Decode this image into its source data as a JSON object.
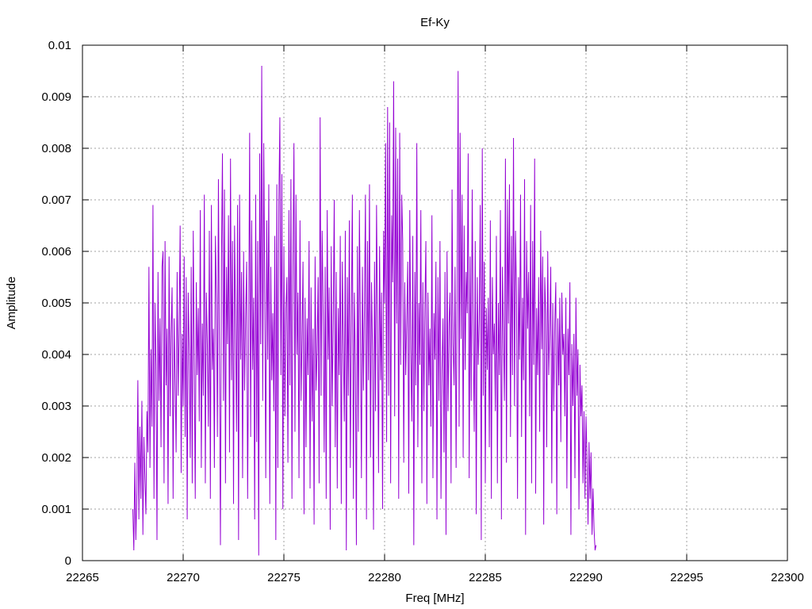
{
  "chart_data": {
    "type": "line",
    "title": "Ef-Ky",
    "xlabel": "Freq [MHz]",
    "ylabel": "Amplitude",
    "xlim": [
      22265,
      22300
    ],
    "ylim": [
      0,
      0.01
    ],
    "x_ticks": [
      22265,
      22270,
      22275,
      22280,
      22285,
      22290,
      22295,
      22300
    ],
    "x_tick_labels": [
      "22265",
      "22270",
      "22275",
      "22280",
      "22285",
      "22290",
      "22295",
      "22300"
    ],
    "y_ticks": [
      0,
      0.001,
      0.002,
      0.003,
      0.004,
      0.005,
      0.006,
      0.007,
      0.008,
      0.009,
      0.01
    ],
    "y_tick_labels": [
      "0",
      "0.001",
      "0.002",
      "0.003",
      "0.004",
      "0.005",
      "0.006",
      "0.007",
      "0.008",
      "0.009",
      "0.01"
    ],
    "grid": true,
    "legend": "none",
    "series": [
      {
        "color": "#9400d3",
        "x_start": 22267.5,
        "x_step": 0.05,
        "y": [
          0.001,
          0.0002,
          0.0019,
          0.0004,
          0.0013,
          0.0035,
          0.0008,
          0.0026,
          0.0012,
          0.0031,
          0.0005,
          0.0024,
          0.0016,
          0.0009,
          0.0029,
          0.0021,
          0.0057,
          0.0018,
          0.0041,
          0.0026,
          0.0069,
          0.0012,
          0.005,
          0.0038,
          0.0004,
          0.0056,
          0.0031,
          0.0047,
          0.0022,
          0.0057,
          0.006,
          0.0015,
          0.0062,
          0.0034,
          0.0045,
          0.0011,
          0.0059,
          0.0028,
          0.0044,
          0.0053,
          0.0012,
          0.0047,
          0.0035,
          0.0021,
          0.0056,
          0.0032,
          0.0045,
          0.0065,
          0.0017,
          0.0044,
          0.003,
          0.0059,
          0.0024,
          0.0055,
          0.0008,
          0.0052,
          0.0041,
          0.002,
          0.0057,
          0.0015,
          0.0064,
          0.0038,
          0.0012,
          0.0054,
          0.0036,
          0.0049,
          0.0027,
          0.0068,
          0.0018,
          0.0046,
          0.0032,
          0.0071,
          0.0015,
          0.0052,
          0.0042,
          0.0026,
          0.0064,
          0.0012,
          0.0069,
          0.0037,
          0.0045,
          0.0018,
          0.0063,
          0.0051,
          0.0024,
          0.0074,
          0.0039,
          0.0003,
          0.0058,
          0.0079,
          0.0031,
          0.0072,
          0.0015,
          0.0057,
          0.0042,
          0.0067,
          0.0021,
          0.0078,
          0.0035,
          0.0062,
          0.0011,
          0.0065,
          0.0046,
          0.0025,
          0.0069,
          0.0004,
          0.0071,
          0.0039,
          0.0056,
          0.0016,
          0.006,
          0.0033,
          0.0047,
          0.0058,
          0.0012,
          0.0042,
          0.0083,
          0.0024,
          0.0066,
          0.0037,
          0.0051,
          0.0008,
          0.0071,
          0.0023,
          0.0062,
          0.0001,
          0.0079,
          0.0042,
          0.0096,
          0.0031,
          0.0081,
          0.0052,
          0.0016,
          0.0066,
          0.0039,
          0.0073,
          0.0011,
          0.0057,
          0.0035,
          0.0048,
          0.0029,
          0.0063,
          0.0004,
          0.0073,
          0.0018,
          0.0069,
          0.0086,
          0.0036,
          0.0075,
          0.001,
          0.0061,
          0.0028,
          0.0049,
          0.0055,
          0.0019,
          0.0068,
          0.0034,
          0.0074,
          0.0012,
          0.0057,
          0.0081,
          0.0025,
          0.0071,
          0.004,
          0.0052,
          0.0016,
          0.0066,
          0.0031,
          0.0043,
          0.0058,
          0.0009,
          0.0051,
          0.0022,
          0.0047,
          0.0036,
          0.0062,
          0.0014,
          0.0053,
          0.0027,
          0.0045,
          0.0007,
          0.0059,
          0.0033,
          0.0041,
          0.0055,
          0.0015,
          0.0086,
          0.0032,
          0.0064,
          0.0048,
          0.0021,
          0.0057,
          0.0012,
          0.0068,
          0.0039,
          0.0053,
          0.0006,
          0.0061,
          0.003,
          0.0047,
          0.007,
          0.0022,
          0.0056,
          0.0014,
          0.0049,
          0.0036,
          0.0063,
          0.0011,
          0.0058,
          0.0042,
          0.0027,
          0.0064,
          0.0002,
          0.0055,
          0.0032,
          0.0066,
          0.0018,
          0.0047,
          0.0071,
          0.0012,
          0.0052,
          0.0038,
          0.0003,
          0.0061,
          0.0025,
          0.0068,
          0.0044,
          0.0016,
          0.0057,
          0.0033,
          0.0049,
          0.0071,
          0.0008,
          0.0062,
          0.0035,
          0.0073,
          0.002,
          0.0054,
          0.0041,
          0.0006,
          0.0058,
          0.0029,
          0.0069,
          0.0045,
          0.0017,
          0.0061,
          0.0035,
          0.0052,
          0.001,
          0.0064,
          0.005,
          0.0081,
          0.0023,
          0.0088,
          0.0032,
          0.0085,
          0.0015,
          0.0067,
          0.0054,
          0.0093,
          0.0028,
          0.0084,
          0.0046,
          0.0078,
          0.0012,
          0.0083,
          0.0038,
          0.0071,
          0.0062,
          0.0019,
          0.0054,
          0.0036,
          0.0047,
          0.0058,
          0.0013,
          0.0068,
          0.0041,
          0.0027,
          0.0063,
          0.0003,
          0.0056,
          0.0034,
          0.0081,
          0.0022,
          0.005,
          0.0038,
          0.0068,
          0.0015,
          0.0054,
          0.0029,
          0.0049,
          0.0062,
          0.0011,
          0.0052,
          0.0034,
          0.0045,
          0.0026,
          0.0067,
          0.0016,
          0.0048,
          0.0039,
          0.0058,
          0.0008,
          0.0055,
          0.0031,
          0.0062,
          0.0012,
          0.0037,
          0.0047,
          0.0021,
          0.0056,
          0.0005,
          0.006,
          0.0029,
          0.0046,
          0.0052,
          0.0015,
          0.0072,
          0.0042,
          0.0034,
          0.0057,
          0.0018,
          0.005,
          0.0095,
          0.0026,
          0.0083,
          0.0043,
          0.0071,
          0.002,
          0.0065,
          0.0037,
          0.0056,
          0.0048,
          0.0079,
          0.0016,
          0.0059,
          0.0031,
          0.0072,
          0.0044,
          0.0025,
          0.0062,
          0.0009,
          0.0055,
          0.0038,
          0.0047,
          0.0069,
          0.0004,
          0.008,
          0.0032,
          0.0058,
          0.0015,
          0.0049,
          0.0037,
          0.0051,
          0.0022,
          0.0066,
          0.0012,
          0.0055,
          0.004,
          0.0046,
          0.0029,
          0.0063,
          0.0015,
          0.005,
          0.0036,
          0.0068,
          0.0008,
          0.0057,
          0.0044,
          0.0031,
          0.0078,
          0.0019,
          0.007,
          0.0046,
          0.0073,
          0.0024,
          0.0063,
          0.0036,
          0.0082,
          0.003,
          0.0064,
          0.0051,
          0.0012,
          0.0055,
          0.0039,
          0.0071,
          0.0024,
          0.0051,
          0.0035,
          0.0074,
          0.0005,
          0.0062,
          0.0045,
          0.0056,
          0.0028,
          0.0069,
          0.0015,
          0.0062,
          0.0038,
          0.0078,
          0.0013,
          0.0049,
          0.0036,
          0.0055,
          0.0025,
          0.0064,
          0.0041,
          0.0059,
          0.0007,
          0.0055,
          0.0048,
          0.0022,
          0.006,
          0.0036,
          0.0045,
          0.0057,
          0.0015,
          0.005,
          0.0029,
          0.0046,
          0.0054,
          0.0009,
          0.0047,
          0.0034,
          0.0051,
          0.0023,
          0.0052,
          0.004,
          0.0044,
          0.0028,
          0.0051,
          0.0014,
          0.0045,
          0.0036,
          0.0054,
          0.0005,
          0.0042,
          0.003,
          0.0044,
          0.0016,
          0.0051,
          0.0032,
          0.0041,
          0.001,
          0.0038,
          0.0028,
          0.0034,
          0.0015,
          0.0029,
          0.0012,
          0.0028,
          0.002,
          0.0007,
          0.0023,
          0.0012,
          0.0021,
          0.0005,
          0.0014,
          0.0006,
          0.0002,
          0.0003
        ]
      }
    ]
  }
}
